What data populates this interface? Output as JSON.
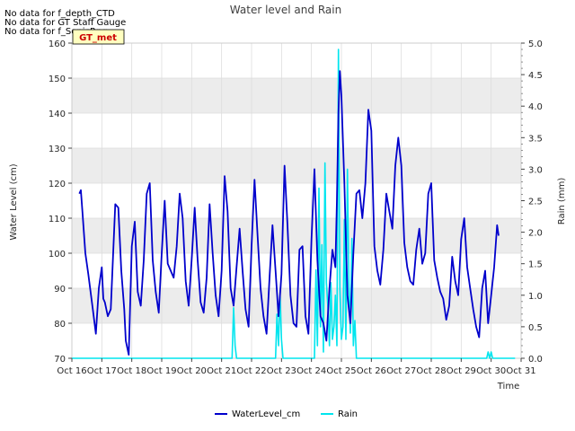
{
  "chart_data": {
    "type": "line",
    "title": "Water level and Rain",
    "xlabel": "Time",
    "ylabel": "Water Level (cm)",
    "y2label": "Rain (mm)",
    "x_tick_labels": [
      "Oct 16",
      "Oct 17",
      "Oct 18",
      "Oct 19",
      "Oct 20",
      "Oct 21",
      "Oct 22",
      "Oct 23",
      "Oct 24",
      "Oct 25",
      "Oct 26",
      "Oct 27",
      "Oct 28",
      "Oct 29",
      "Oct 30",
      "Oct 31"
    ],
    "x_range": [
      16,
      31
    ],
    "ylim": [
      70,
      160
    ],
    "y_ticks": [
      70,
      80,
      90,
      100,
      110,
      120,
      130,
      140,
      150,
      160
    ],
    "y2lim": [
      0,
      5
    ],
    "y2_ticks": [
      "0.0",
      "0.5",
      "1.0",
      "1.5",
      "2.0",
      "2.5",
      "3.0",
      "3.5",
      "4.0",
      "4.5",
      "5.0"
    ],
    "notes": [
      "No data for f_depth_CTD",
      "No data for GT Staff Gauge",
      "No data for f_SonicRng"
    ],
    "badge": "GT_met",
    "legend": [
      "WaterLevel_cm",
      "Rain"
    ],
    "colors": {
      "water": "#0000cc",
      "rain": "#00e5ee",
      "band": "#ececec",
      "badge_bg": "#ffffc0"
    },
    "series": [
      {
        "name": "WaterLevel_cm",
        "axis": "left",
        "x": [
          16.25,
          16.3,
          16.35,
          16.45,
          16.55,
          16.7,
          16.8,
          16.9,
          17.0,
          17.05,
          17.1,
          17.2,
          17.3,
          17.45,
          17.55,
          17.65,
          17.75,
          17.8,
          17.9,
          18.0,
          18.1,
          18.2,
          18.3,
          18.4,
          18.5,
          18.6,
          18.7,
          18.8,
          18.9,
          19.0,
          19.1,
          19.2,
          19.3,
          19.4,
          19.5,
          19.6,
          19.7,
          19.8,
          19.9,
          20.0,
          20.1,
          20.2,
          20.3,
          20.4,
          20.5,
          20.6,
          20.7,
          20.8,
          20.9,
          21.0,
          21.1,
          21.2,
          21.3,
          21.4,
          21.5,
          21.6,
          21.7,
          21.8,
          21.9,
          22.0,
          22.1,
          22.2,
          22.3,
          22.4,
          22.5,
          22.6,
          22.7,
          22.8,
          22.9,
          23.0,
          23.1,
          23.2,
          23.3,
          23.4,
          23.5,
          23.6,
          23.7,
          23.8,
          23.9,
          24.0,
          24.1,
          24.2,
          24.3,
          24.4,
          24.5,
          24.6,
          24.7,
          24.8,
          24.85,
          24.9,
          24.95,
          25.0,
          25.1,
          25.2,
          25.3,
          25.4,
          25.5,
          25.6,
          25.7,
          25.8,
          25.9,
          26.0,
          26.1,
          26.2,
          26.3,
          26.4,
          26.5,
          26.6,
          26.7,
          26.8,
          26.9,
          27.0,
          27.1,
          27.2,
          27.3,
          27.4,
          27.5,
          27.6,
          27.7,
          27.8,
          27.9,
          28.0,
          28.1,
          28.2,
          28.3,
          28.4,
          28.5,
          28.6,
          28.7,
          28.8,
          28.9,
          29.0,
          29.1,
          29.2,
          29.3,
          29.4,
          29.5,
          29.6,
          29.7,
          29.8,
          29.9,
          30.0,
          30.1,
          30.2,
          30.25
        ],
        "values": [
          117,
          118,
          112,
          100,
          94,
          84,
          77,
          90,
          96,
          87,
          86,
          82,
          84,
          114,
          113,
          95,
          84,
          75,
          71,
          102,
          109,
          89,
          85,
          98,
          117,
          120,
          98,
          89,
          83,
          100,
          115,
          97,
          95,
          93,
          102,
          117,
          110,
          92,
          85,
          98,
          113,
          98,
          86,
          83,
          93,
          114,
          100,
          88,
          82,
          95,
          122,
          112,
          90,
          85,
          96,
          107,
          95,
          84,
          79,
          102,
          121,
          105,
          90,
          82,
          77,
          93,
          108,
          95,
          82,
          94,
          125,
          108,
          88,
          80,
          79,
          101,
          102,
          82,
          77,
          104,
          124,
          98,
          82,
          80,
          75,
          90,
          101,
          96,
          115,
          140,
          152,
          145,
          120,
          88,
          80,
          100,
          117,
          118,
          110,
          120,
          141,
          135,
          102,
          95,
          91,
          101,
          117,
          112,
          107,
          125,
          133,
          125,
          103,
          96,
          92,
          91,
          101,
          107,
          97,
          100,
          117,
          120,
          98,
          93,
          89,
          87,
          81,
          85,
          99,
          92,
          88,
          104,
          110,
          96,
          90,
          84,
          79,
          76,
          90,
          95,
          80,
          88,
          96,
          108,
          105
        ]
      },
      {
        "name": "Rain",
        "axis": "right",
        "x": [
          16.0,
          21.35,
          21.4,
          21.45,
          21.5,
          21.55,
          22.8,
          22.85,
          22.9,
          22.95,
          23.0,
          23.05,
          24.1,
          24.15,
          24.2,
          24.25,
          24.3,
          24.35,
          24.4,
          24.45,
          24.5,
          24.55,
          24.6,
          24.65,
          24.7,
          24.75,
          24.8,
          24.85,
          24.9,
          24.95,
          25.0,
          25.05,
          25.1,
          25.15,
          25.2,
          25.25,
          25.3,
          25.35,
          25.4,
          25.45,
          25.5,
          25.55,
          25.6,
          25.65,
          29.85,
          29.9,
          29.95,
          30.0,
          30.05,
          30.8
        ],
        "values": [
          0,
          0,
          0.8,
          0.2,
          0,
          0,
          0,
          0.7,
          0.2,
          1.0,
          0.3,
          0,
          0,
          1.4,
          0.2,
          2.7,
          0.5,
          1.8,
          0.1,
          3.1,
          1.2,
          0.8,
          0.2,
          1.2,
          0.3,
          0.5,
          1.0,
          0.2,
          4.9,
          1.1,
          0.3,
          0.5,
          2.2,
          0.3,
          3.0,
          1.2,
          0.4,
          1.9,
          0.2,
          0.6,
          0,
          0,
          0,
          0,
          0,
          0.1,
          0,
          0.1,
          0,
          0
        ]
      }
    ]
  }
}
